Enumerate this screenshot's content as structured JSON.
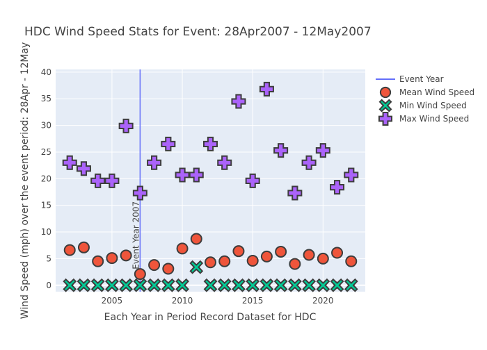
{
  "chart_data": {
    "type": "scatter",
    "title": "HDC Wind Speed Stats for Event: 28Apr2007 - 12May2007",
    "xlabel": "Each Year in Period Record Dataset for HDC",
    "ylabel": "Wind Speed (mph) over the event period: 28Apr - 12May",
    "xlim": [
      2001.0,
      2023.0
    ],
    "ylim": [
      -1.2,
      40.5
    ],
    "x_ticks": [
      2005,
      2010,
      2015,
      2020
    ],
    "y_ticks": [
      0,
      5,
      10,
      15,
      20,
      25,
      30,
      35,
      40
    ],
    "grid": true,
    "legend_position": "top-right",
    "event_year": {
      "x": 2007,
      "label": "Event Year 2007",
      "legend": "Event Year",
      "color": "#636efa"
    },
    "x": [
      2002,
      2003,
      2004,
      2005,
      2006,
      2007,
      2008,
      2009,
      2010,
      2011,
      2012,
      2013,
      2014,
      2015,
      2016,
      2017,
      2018,
      2019,
      2020,
      2021,
      2022
    ],
    "series": [
      {
        "name": "Mean Wind Speed",
        "marker": "circle",
        "color": "#ef553b",
        "values": [
          6.6,
          7.1,
          4.5,
          5.1,
          5.6,
          2.1,
          3.8,
          3.1,
          6.9,
          8.7,
          4.3,
          4.5,
          6.4,
          4.6,
          5.4,
          6.3,
          4.0,
          5.7,
          5.0,
          6.1,
          4.5
        ]
      },
      {
        "name": "Min Wind Speed",
        "marker": "x",
        "color": "#00cc96",
        "values": [
          0,
          0,
          0,
          0,
          0,
          0,
          0,
          0,
          0,
          3.4,
          0,
          0,
          0,
          0,
          0,
          0,
          0,
          0,
          0,
          0,
          0
        ]
      },
      {
        "name": "Max Wind Speed",
        "marker": "cross",
        "color": "#ab63fa",
        "values": [
          23.0,
          21.9,
          19.6,
          19.6,
          29.9,
          17.3,
          23.0,
          26.5,
          20.7,
          20.7,
          26.5,
          23.0,
          34.5,
          19.6,
          36.8,
          25.3,
          17.3,
          23.0,
          25.3,
          18.4,
          20.7
        ]
      }
    ]
  }
}
